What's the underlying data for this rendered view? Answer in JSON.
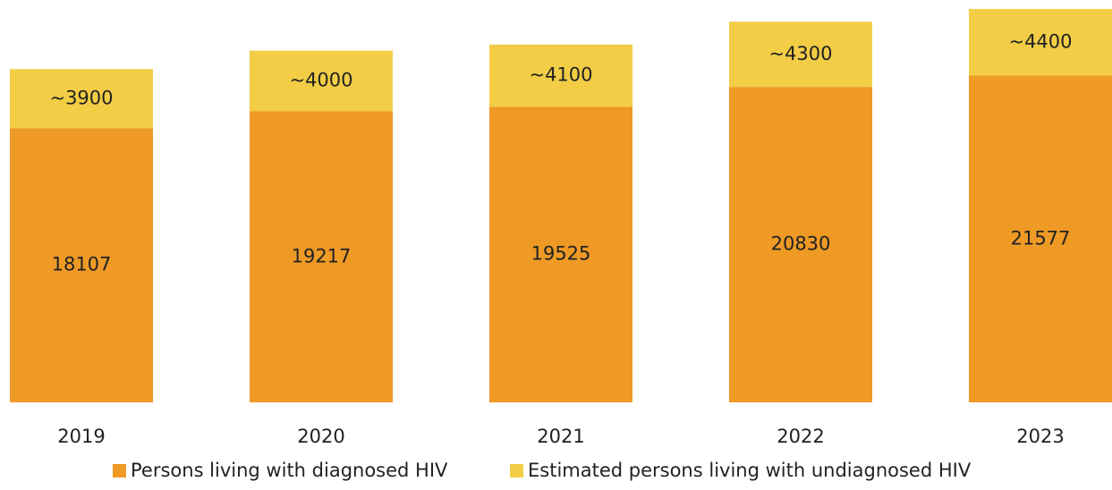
{
  "chart_data": {
    "type": "stacked_bar",
    "categories": [
      "2019",
      "2020",
      "2021",
      "2022",
      "2023"
    ],
    "series": [
      {
        "name": "Persons living with diagnosed HIV",
        "color": "#ee9a25",
        "values": [
          18107,
          19217,
          19525,
          20830,
          21577
        ]
      },
      {
        "name": "Estimated persons living with undiagnosed HIV",
        "color": "#f2cd45",
        "values": [
          3900,
          4000,
          4100,
          4300,
          4400
        ],
        "value_labels": [
          "~3900",
          "~4000",
          "~4100",
          "~4300",
          "~4400"
        ]
      }
    ],
    "legend": "bottom"
  }
}
